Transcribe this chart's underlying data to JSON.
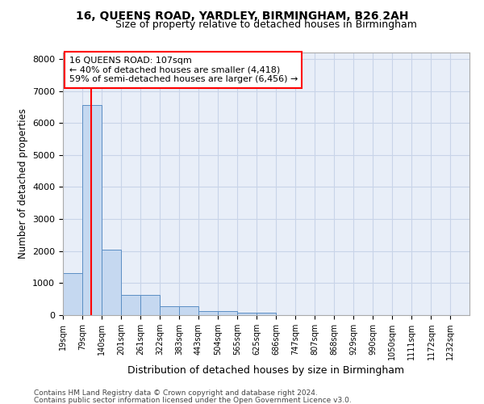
{
  "title1": "16, QUEENS ROAD, YARDLEY, BIRMINGHAM, B26 2AH",
  "title2": "Size of property relative to detached houses in Birmingham",
  "xlabel": "Distribution of detached houses by size in Birmingham",
  "ylabel": "Number of detached properties",
  "bin_labels": [
    "19sqm",
    "79sqm",
    "140sqm",
    "201sqm",
    "261sqm",
    "322sqm",
    "383sqm",
    "443sqm",
    "504sqm",
    "565sqm",
    "625sqm",
    "686sqm",
    "747sqm",
    "807sqm",
    "868sqm",
    "929sqm",
    "990sqm",
    "1050sqm",
    "1111sqm",
    "1172sqm",
    "1232sqm"
  ],
  "bin_edges": [
    19,
    79,
    140,
    201,
    261,
    322,
    383,
    443,
    504,
    565,
    625,
    686,
    747,
    807,
    868,
    929,
    990,
    1050,
    1111,
    1172,
    1232
  ],
  "bar_heights": [
    1300,
    6550,
    2050,
    620,
    620,
    270,
    270,
    120,
    120,
    70,
    70,
    0,
    0,
    0,
    0,
    0,
    0,
    0,
    0,
    0
  ],
  "bar_color": "#c5d8f0",
  "bar_edge_color": "#5b8ec4",
  "grid_color": "#c8d4e8",
  "background_color": "#e8eef8",
  "red_line_x": 107,
  "ylim": [
    0,
    8200
  ],
  "yticks": [
    0,
    1000,
    2000,
    3000,
    4000,
    5000,
    6000,
    7000,
    8000
  ],
  "annotation_text": "16 QUEENS ROAD: 107sqm\n← 40% of detached houses are smaller (4,418)\n59% of semi-detached houses are larger (6,456) →",
  "footer1": "Contains HM Land Registry data © Crown copyright and database right 2024.",
  "footer2": "Contains public sector information licensed under the Open Government Licence v3.0."
}
